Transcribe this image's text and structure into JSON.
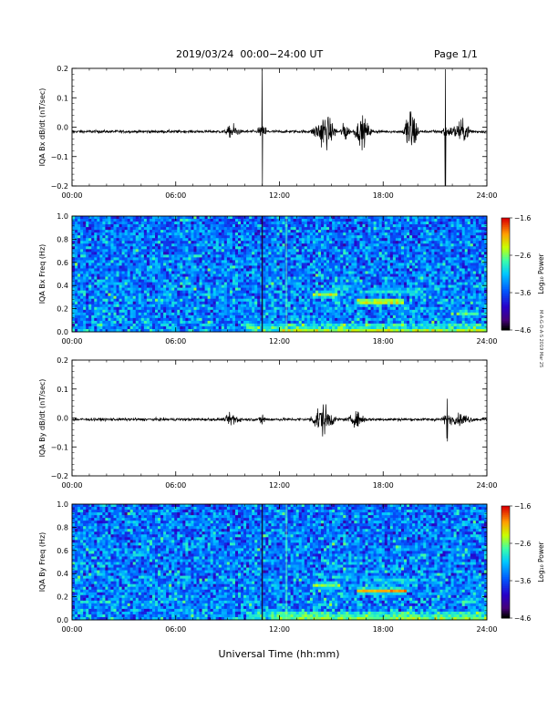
{
  "header": {
    "title": "2019/03/24  00:00−24:00 UT",
    "page": "Page 1/1"
  },
  "x_axis_title": "Universal Time (hh:mm)",
  "side_note": "M·A·G·D·A·S 2019 Mar 25",
  "chart_data": [
    {
      "type": "line",
      "panel": "IQA Bx time series",
      "ylabel": "IQA Bx dB/dt (nT/sec)",
      "xlabel": "",
      "xticks": [
        "00:00",
        "06:00",
        "12:00",
        "18:00",
        "24:00"
      ],
      "yticks": [
        "0.2",
        "0.1",
        "0.0",
        "−0.1",
        "−0.2"
      ],
      "xlim_hours": [
        0,
        24
      ],
      "ylim": [
        -0.2,
        0.2
      ],
      "baseline": -0.015,
      "noise_amp": 0.004,
      "bursts": [
        {
          "t": 9.3,
          "w": 0.5,
          "amp": 0.02
        },
        {
          "t": 11.0,
          "w": 0.05,
          "amp": 0.21,
          "spike": true
        },
        {
          "t": 14.6,
          "w": 0.8,
          "amp": 0.05
        },
        {
          "t": 15.8,
          "w": 0.3,
          "amp": 0.03
        },
        {
          "t": 16.8,
          "w": 0.6,
          "amp": 0.04
        },
        {
          "t": 19.6,
          "w": 0.5,
          "amp": 0.08
        },
        {
          "t": 21.6,
          "w": 0.05,
          "amp": 0.21,
          "spike": true
        },
        {
          "t": 22.5,
          "w": 0.8,
          "amp": 0.03
        }
      ]
    },
    {
      "type": "heatmap",
      "panel": "IQA Bx spectrogram",
      "ylabel": "IQA Bx Freq (Hz)",
      "xlabel": "",
      "xticks": [
        "00:00",
        "06:00",
        "12:00",
        "18:00",
        "24:00"
      ],
      "yticks": [
        "1.0",
        "0.8",
        "0.6",
        "0.4",
        "0.2",
        "0.0"
      ],
      "xlim_hours": [
        0,
        24
      ],
      "ylim": [
        0,
        1.0
      ],
      "colorbar": {
        "label": "Log₁₀ Power",
        "ticks": [
          "−1.6",
          "−2.6",
          "−3.6",
          "−4.6"
        ],
        "range": [
          -4.6,
          -1.6
        ]
      },
      "features": [
        {
          "t0": 14.0,
          "t1": 15.4,
          "f": 0.32,
          "bw": 0.04,
          "level": 0.75
        },
        {
          "t0": 15.0,
          "t1": 16.0,
          "f": 0.38,
          "bw": 0.03,
          "level": 0.65
        },
        {
          "t0": 16.5,
          "t1": 19.2,
          "f": 0.26,
          "bw": 0.035,
          "level": 0.9
        },
        {
          "t0": 17.5,
          "t1": 20.0,
          "f": 0.35,
          "bw": 0.03,
          "level": 0.6
        },
        {
          "t0": 22.3,
          "t1": 23.5,
          "f": 0.16,
          "bw": 0.03,
          "level": 0.7
        },
        {
          "t0": 12.0,
          "t1": 24.0,
          "f": 0.01,
          "bw": 0.02,
          "level": 0.75
        }
      ],
      "vertical_lines": [
        {
          "t": 11.0,
          "kind": "dark"
        },
        {
          "t": 12.4,
          "kind": "bright"
        }
      ]
    },
    {
      "type": "line",
      "panel": "IQA By time series",
      "ylabel": "IQA By dB/dt (nT/sec)",
      "xlabel": "",
      "xticks": [
        "00:00",
        "06:00",
        "12:00",
        "18:00",
        "24:00"
      ],
      "yticks": [
        "0.2",
        "0.1",
        "0.0",
        "−0.1",
        "−0.2"
      ],
      "xlim_hours": [
        0,
        24
      ],
      "ylim": [
        -0.2,
        0.2
      ],
      "baseline": -0.005,
      "noise_amp": 0.004,
      "bursts": [
        {
          "t": 9.3,
          "w": 0.5,
          "amp": 0.02
        },
        {
          "t": 11.0,
          "w": 0.2,
          "amp": 0.02
        },
        {
          "t": 14.5,
          "w": 0.8,
          "amp": 0.045
        },
        {
          "t": 16.5,
          "w": 0.6,
          "amp": 0.02
        },
        {
          "t": 21.7,
          "w": 0.1,
          "amp": 0.07,
          "spike": true
        },
        {
          "t": 22.5,
          "w": 0.8,
          "amp": 0.015
        }
      ]
    },
    {
      "type": "heatmap",
      "panel": "IQA By spectrogram",
      "ylabel": "IQA By Freq (Hz)",
      "xlabel": "Universal Time (hh:mm)",
      "xticks": [
        "00:00",
        "06:00",
        "12:00",
        "18:00",
        "24:00"
      ],
      "yticks": [
        "1.0",
        "0.8",
        "0.6",
        "0.4",
        "0.2",
        "0.0"
      ],
      "xlim_hours": [
        0,
        24
      ],
      "ylim": [
        0,
        1.0
      ],
      "colorbar": {
        "label": "Log₁₀ Power",
        "ticks": [
          "−1.6",
          "−2.6",
          "−3.6",
          "−4.6"
        ],
        "range": [
          -4.6,
          -1.6
        ]
      },
      "features": [
        {
          "t0": 14.0,
          "t1": 15.5,
          "f": 0.3,
          "bw": 0.04,
          "level": 0.7
        },
        {
          "t0": 15.0,
          "t1": 16.2,
          "f": 0.37,
          "bw": 0.03,
          "level": 0.55
        },
        {
          "t0": 16.5,
          "t1": 19.3,
          "f": 0.25,
          "bw": 0.035,
          "level": 0.85
        },
        {
          "t0": 17.5,
          "t1": 20.0,
          "f": 0.34,
          "bw": 0.03,
          "level": 0.55
        },
        {
          "t0": 22.3,
          "t1": 23.5,
          "f": 0.16,
          "bw": 0.03,
          "level": 0.6
        },
        {
          "t0": 11.5,
          "t1": 24.0,
          "f": 0.02,
          "bw": 0.04,
          "level": 0.75
        }
      ],
      "vertical_lines": [
        {
          "t": 11.0,
          "kind": "dark"
        },
        {
          "t": 12.4,
          "kind": "bright"
        }
      ]
    }
  ]
}
